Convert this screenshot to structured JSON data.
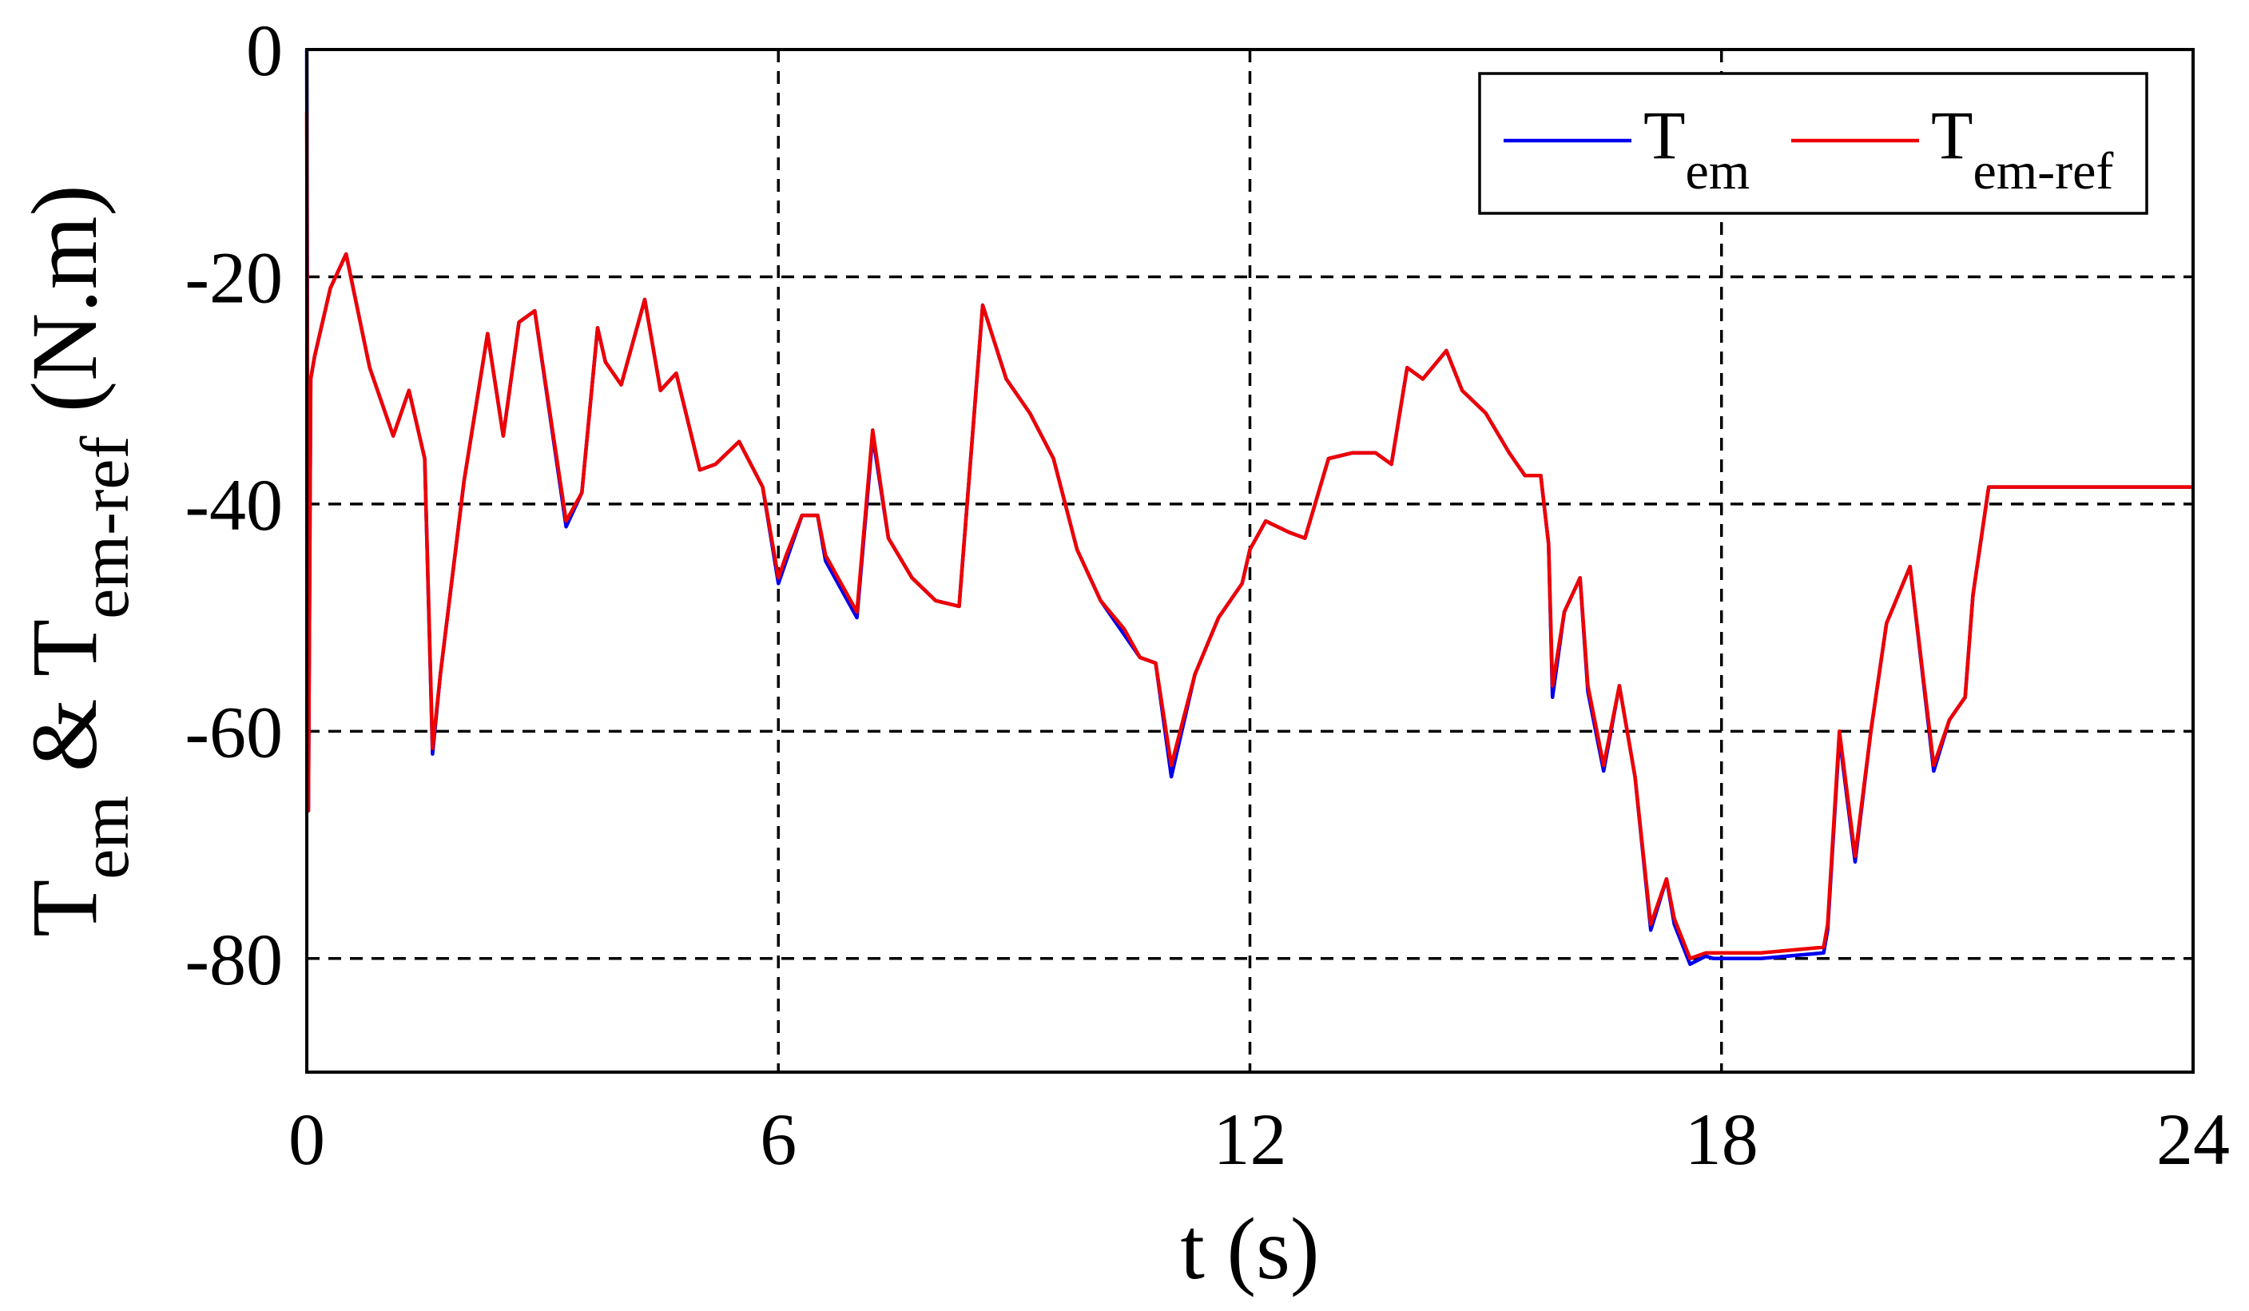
{
  "chart_data": {
    "type": "line",
    "xlabel": "t (s)",
    "ylabel": {
      "parts": [
        {
          "text": "T",
          "sub": false
        },
        {
          "text": "em",
          "sub": true
        },
        {
          "text": " & T",
          "sub": false
        },
        {
          "text": "em-ref",
          "sub": true
        },
        {
          "text": " (N.m)",
          "sub": false
        }
      ]
    },
    "xlim": [
      0,
      24
    ],
    "ylim": [
      -90,
      0
    ],
    "xticks": [
      0,
      6,
      12,
      18,
      24
    ],
    "yticks": [
      0,
      -20,
      -40,
      -60,
      -80
    ],
    "grid": true,
    "grid_style": "dashed",
    "legend_position": "top-right",
    "series": [
      {
        "name": "T",
        "name_sub": "em",
        "color": "#0000ee",
        "x": [
          0,
          0.02,
          0.05,
          0.1,
          0.3,
          0.5,
          0.8,
          1.1,
          1.3,
          1.5,
          1.6,
          1.7,
          2.0,
          2.3,
          2.5,
          2.7,
          2.9,
          3.3,
          3.5,
          3.7,
          3.8,
          4.0,
          4.3,
          4.5,
          4.7,
          5.0,
          5.2,
          5.5,
          5.8,
          6.0,
          6.1,
          6.3,
          6.5,
          6.6,
          6.8,
          7.0,
          7.2,
          7.4,
          7.7,
          8.0,
          8.3,
          8.6,
          8.9,
          9.2,
          9.5,
          9.8,
          10.1,
          10.4,
          10.6,
          10.8,
          11.0,
          11.3,
          11.6,
          11.9,
          12.0,
          12.2,
          12.5,
          12.7,
          13.0,
          13.3,
          13.6,
          13.8,
          14.0,
          14.2,
          14.5,
          14.7,
          15.0,
          15.3,
          15.5,
          15.7,
          15.8,
          15.85,
          16.0,
          16.2,
          16.3,
          16.5,
          16.7,
          16.9,
          17.1,
          17.3,
          17.4,
          17.6,
          17.8,
          17.9,
          18.5,
          19.3,
          19.35,
          19.5,
          19.7,
          19.9,
          20.1,
          20.4,
          20.7,
          20.9,
          21.1,
          21.2,
          21.4,
          21.6,
          24
        ],
        "y": [
          0,
          -67,
          -29,
          -27,
          -21,
          -18,
          -28,
          -34,
          -30,
          -36,
          -62,
          -55,
          -38,
          -25,
          -34,
          -24,
          -23,
          -42,
          -39,
          -24.5,
          -27.5,
          -29.5,
          -22,
          -30,
          -28.5,
          -37,
          -36.5,
          -34.5,
          -38.5,
          -47,
          -45,
          -41,
          -41,
          -45,
          -47.5,
          -50,
          -34,
          -43,
          -46.5,
          -48.5,
          -49,
          -22.5,
          -29,
          -32,
          -36,
          -44,
          -48.5,
          -51.5,
          -53.5,
          -54,
          -64,
          -55,
          -50,
          -47,
          -44,
          -41.5,
          -42.5,
          -43,
          -36,
          -35.5,
          -35.5,
          -36.5,
          -28,
          -29,
          -26.5,
          -30,
          -32,
          -35.5,
          -37.5,
          -37.5,
          -43.5,
          -57,
          -49.5,
          -46.5,
          -56.5,
          -63.5,
          -56,
          -64,
          -77.5,
          -73,
          -77,
          -80.5,
          -79.8,
          -80,
          -80,
          -79.5,
          -77.5,
          -60.5,
          -71.5,
          -60,
          -50.5,
          -45.5,
          -63.5,
          -59,
          -57,
          -48,
          -38.5,
          -38.5,
          -38.5
        ]
      },
      {
        "name": "T",
        "name_sub": "em-ref",
        "color": "#ee0000",
        "x": [
          0,
          0.02,
          0.05,
          0.1,
          0.3,
          0.5,
          0.8,
          1.1,
          1.3,
          1.5,
          1.6,
          1.7,
          2.0,
          2.3,
          2.5,
          2.7,
          2.9,
          3.3,
          3.5,
          3.7,
          3.8,
          4.0,
          4.3,
          4.5,
          4.7,
          5.0,
          5.2,
          5.5,
          5.8,
          6.0,
          6.1,
          6.3,
          6.5,
          6.6,
          6.8,
          7.0,
          7.2,
          7.4,
          7.7,
          8.0,
          8.3,
          8.6,
          8.9,
          9.2,
          9.5,
          9.8,
          10.1,
          10.4,
          10.6,
          10.8,
          11.0,
          11.3,
          11.6,
          11.9,
          12.0,
          12.2,
          12.5,
          12.7,
          13.0,
          13.3,
          13.6,
          13.8,
          14.0,
          14.2,
          14.5,
          14.7,
          15.0,
          15.3,
          15.5,
          15.7,
          15.8,
          15.85,
          16.0,
          16.2,
          16.3,
          16.5,
          16.7,
          16.9,
          17.1,
          17.3,
          17.4,
          17.6,
          17.8,
          17.9,
          18.5,
          19.3,
          19.35,
          19.5,
          19.7,
          19.9,
          20.1,
          20.4,
          20.7,
          20.9,
          21.1,
          21.2,
          21.4,
          21.6,
          24
        ],
        "y": [
          -5.5,
          -67,
          -29,
          -27,
          -21,
          -18,
          -28,
          -34,
          -30,
          -36,
          -61.5,
          -55,
          -38,
          -25,
          -34,
          -24,
          -23,
          -41.5,
          -39,
          -24.5,
          -27.5,
          -29.5,
          -22,
          -30,
          -28.5,
          -37,
          -36.5,
          -34.5,
          -38.5,
          -46.5,
          -44.5,
          -41,
          -41,
          -44.5,
          -47,
          -49.5,
          -33.5,
          -43,
          -46.5,
          -48.5,
          -49,
          -22.5,
          -29,
          -32,
          -36,
          -44,
          -48.5,
          -51,
          -53.5,
          -54,
          -63,
          -55,
          -50,
          -47,
          -44,
          -41.5,
          -42.5,
          -43,
          -36,
          -35.5,
          -35.5,
          -36.5,
          -28,
          -29,
          -26.5,
          -30,
          -32,
          -35.5,
          -37.5,
          -37.5,
          -43.5,
          -56,
          -49.5,
          -46.5,
          -56,
          -63,
          -56,
          -64,
          -77,
          -73,
          -76.5,
          -80,
          -79.5,
          -79.5,
          -79.5,
          -79,
          -77,
          -60,
          -71,
          -60,
          -50.5,
          -45.5,
          -63,
          -59,
          -57,
          -48,
          -38.5,
          -38.5,
          -38.5
        ]
      }
    ]
  }
}
